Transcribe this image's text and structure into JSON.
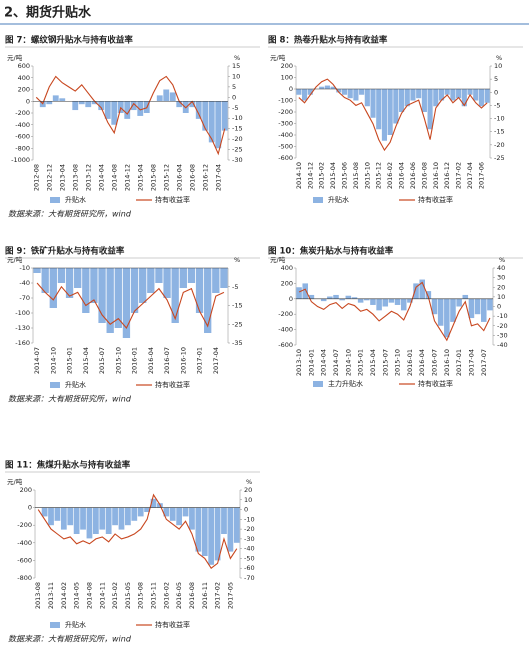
{
  "header": "2、期货升贴水",
  "chart_data": [
    {
      "type": "combo",
      "title": "图 7：螺纹钢升贴水与持有收益率",
      "y_unit": "元/吨",
      "y2_unit": "%",
      "source": "数据来源：大有期货研究所，wind",
      "categories": [
        "2012-08",
        null,
        "2012-12",
        null,
        "2013-04",
        null,
        "2013-08",
        null,
        "2013-12",
        null,
        "2014-04",
        null,
        "2014-08",
        null,
        "2014-12",
        null,
        "2015-04",
        null,
        "2015-08",
        null,
        "2015-12",
        null,
        "2016-04",
        null,
        "2016-08",
        null,
        "2016-12",
        null,
        "2017-04",
        null
      ],
      "ylim": [
        -1000,
        600
      ],
      "yticks": [
        600,
        400,
        200,
        0,
        -200,
        -400,
        -600,
        -800,
        -1000
      ],
      "y2lim": [
        -30,
        15
      ],
      "y2ticks": [
        15,
        10,
        5,
        0,
        -5,
        -10,
        -15,
        -20,
        -25,
        -30
      ],
      "series": [
        {
          "name": "升贴水",
          "type": "bar",
          "color": "#8db3e2",
          "values": [
            0,
            -100,
            -50,
            100,
            50,
            0,
            -150,
            -50,
            -100,
            -50,
            -150,
            -300,
            -400,
            -200,
            -300,
            -150,
            -250,
            -200,
            0,
            100,
            200,
            150,
            -100,
            -200,
            -100,
            -300,
            -500,
            -700,
            -800,
            -500
          ]
        },
        {
          "name": "持有收益率",
          "type": "line",
          "axis": "y2",
          "color": "#c8471f",
          "values": [
            0,
            -3,
            5,
            10,
            7,
            5,
            3,
            6,
            2,
            -2,
            -5,
            -12,
            -17,
            -5,
            -8,
            -3,
            -6,
            -5,
            2,
            8,
            10,
            6,
            -2,
            -5,
            -2,
            -8,
            -15,
            -20,
            -27,
            -15
          ]
        }
      ]
    },
    {
      "type": "combo",
      "title": "图 8：热卷升贴水与持有收益率",
      "y_unit": "元/吨",
      "y2_unit": "%",
      "categories": [
        "2014-10",
        null,
        "2014-12",
        null,
        "2015-02",
        null,
        "2015-04",
        null,
        "2015-06",
        null,
        "2015-08",
        null,
        "2015-10",
        null,
        "2015-12",
        null,
        "2016-02",
        null,
        "2016-04",
        null,
        "2016-06",
        null,
        "2016-08",
        null,
        "2016-10",
        null,
        "2016-12",
        null,
        "2017-02",
        null,
        "2017-04",
        null,
        "2017-06",
        null
      ],
      "ylim": [
        -600,
        200
      ],
      "yticks": [
        200,
        100,
        0,
        -100,
        -200,
        -300,
        -400,
        -500,
        -600
      ],
      "y2lim": [
        -25,
        10
      ],
      "y2ticks": [
        10,
        5,
        0,
        -5,
        -10,
        -15,
        -20,
        -25
      ],
      "series": [
        {
          "name": "升贴水",
          "type": "bar",
          "color": "#8db3e2",
          "values": [
            -50,
            -100,
            -50,
            0,
            20,
            30,
            20,
            -30,
            -50,
            -80,
            -100,
            -50,
            -150,
            -250,
            -350,
            -450,
            -400,
            -300,
            -200,
            -150,
            -100,
            -80,
            -200,
            -350,
            -150,
            -100,
            -50,
            -100,
            -80,
            -150,
            -50,
            -100,
            -150,
            -120
          ]
        },
        {
          "name": "持有收益率",
          "type": "line",
          "axis": "y2",
          "color": "#c8471f",
          "values": [
            -2,
            -4,
            -1,
            2,
            4,
            5,
            3,
            0,
            -2,
            -3,
            -5,
            -4,
            -8,
            -12,
            -18,
            -22,
            -19,
            -13,
            -8,
            -5,
            -4,
            -3,
            -10,
            -18,
            -6,
            -3,
            -1,
            -4,
            -2,
            -5,
            -1,
            -4,
            -6,
            -4
          ]
        }
      ]
    },
    {
      "type": "combo",
      "title": "图 9：铁矿升贴水与持有收益率",
      "y_unit": "元/吨",
      "y2_unit": "%",
      "source": "数据来源：大有期货研究所，wind",
      "categories": [
        "2014-07",
        null,
        "2014-10",
        null,
        "2015-01",
        null,
        "2015-04",
        null,
        "2015-07",
        null,
        "2015-10",
        null,
        "2016-01",
        null,
        "2016-04",
        null,
        "2016-07",
        null,
        "2016-10",
        null,
        "2017-01",
        null,
        "2017-04",
        null
      ],
      "ylim": [
        -160,
        -10
      ],
      "yticks": [
        -10,
        -40,
        -70,
        -100,
        -130,
        -160
      ],
      "y2lim": [
        -35,
        5
      ],
      "y2ticks": [
        -5,
        -15,
        -25,
        -35
      ],
      "series": [
        {
          "name": "升贴水",
          "type": "bar",
          "color": "#8db3e2",
          "values": [
            -20,
            -60,
            -90,
            -40,
            -70,
            -50,
            -100,
            -80,
            -120,
            -140,
            -130,
            -150,
            -100,
            -80,
            -60,
            -40,
            -70,
            -120,
            -50,
            -40,
            -100,
            -140,
            -60,
            -50
          ]
        },
        {
          "name": "持有收益率",
          "type": "line",
          "axis": "y2",
          "color": "#c8471f",
          "values": [
            -3,
            -8,
            -12,
            -5,
            -10,
            -8,
            -15,
            -12,
            -20,
            -25,
            -22,
            -27,
            -18,
            -14,
            -10,
            -6,
            -12,
            -22,
            -8,
            -6,
            -18,
            -26,
            -10,
            -8
          ]
        }
      ]
    },
    {
      "type": "combo",
      "title": "图 10：焦炭升贴水与持有收益率",
      "y_unit": "元/吨",
      "y2_unit": "%",
      "categories": [
        "2013-10",
        null,
        "2014-01",
        null,
        "2014-04",
        null,
        "2014-07",
        null,
        "2014-10",
        null,
        "2015-01",
        null,
        "2015-04",
        null,
        "2015-07",
        null,
        "2015-10",
        null,
        "2016-01",
        null,
        "2016-04",
        null,
        "2016-07",
        null,
        "2016-10",
        null,
        "2017-01",
        null,
        "2017-04",
        null,
        "2017-07",
        null
      ],
      "ylim": [
        -600,
        400
      ],
      "yticks": [
        400,
        200,
        0,
        -200,
        -400,
        -600
      ],
      "y2lim": [
        -40,
        40
      ],
      "y2ticks": [
        40,
        30,
        20,
        10,
        0,
        -10,
        -20,
        -30,
        -40
      ],
      "series": [
        {
          "name": "主力升贴水",
          "type": "bar",
          "color": "#8db3e2",
          "values": [
            150,
            200,
            50,
            0,
            -30,
            30,
            50,
            -20,
            40,
            20,
            -50,
            -20,
            -80,
            -150,
            -100,
            -50,
            -80,
            -150,
            -50,
            200,
            250,
            100,
            -200,
            -350,
            -500,
            -300,
            -100,
            50,
            -250,
            -200,
            -300,
            -150
          ]
        },
        {
          "name": "持有收益率",
          "type": "line",
          "axis": "y2",
          "color": "#c8471f",
          "values": [
            15,
            18,
            5,
            0,
            -3,
            2,
            4,
            -2,
            3,
            1,
            -5,
            -3,
            -8,
            -15,
            -10,
            -5,
            -8,
            -14,
            0,
            20,
            25,
            10,
            -15,
            -25,
            -35,
            -20,
            -5,
            5,
            -20,
            -18,
            -25,
            -12
          ]
        }
      ]
    },
    {
      "type": "combo",
      "title": "图 11：焦煤升贴水与持有收益率",
      "y_unit": "元/吨",
      "y2_unit": "%",
      "source": "数据来源：大有期货研究所，wind",
      "categories": [
        "2013-08",
        null,
        "2013-11",
        null,
        "2014-02",
        null,
        "2014-05",
        null,
        "2014-08",
        null,
        "2014-11",
        null,
        "2015-02",
        null,
        "2015-05",
        null,
        "2015-08",
        null,
        "2015-11",
        null,
        "2016-02",
        null,
        "2016-05",
        null,
        "2016-08",
        null,
        "2016-11",
        null,
        "2017-02",
        null,
        "2017-05",
        null
      ],
      "ylim": [
        -800,
        200
      ],
      "yticks": [
        200,
        0,
        -200,
        -400,
        -600,
        -800
      ],
      "y2lim": [
        -70,
        20
      ],
      "y2ticks": [
        20,
        10,
        0,
        -10,
        -20,
        -30,
        -40,
        -50,
        -60,
        -70
      ],
      "series": [
        {
          "name": "升贴水",
          "type": "bar",
          "color": "#8db3e2",
          "values": [
            0,
            -100,
            -200,
            -150,
            -250,
            -200,
            -300,
            -250,
            -350,
            -300,
            -250,
            -300,
            -200,
            -250,
            -200,
            -150,
            -100,
            -50,
            100,
            50,
            -100,
            -150,
            -200,
            -100,
            -250,
            -500,
            -550,
            -650,
            -600,
            -300,
            -500,
            -400
          ]
        },
        {
          "name": "持有收益率",
          "type": "line",
          "axis": "y2",
          "color": "#c8471f",
          "values": [
            0,
            -10,
            -20,
            -25,
            -30,
            -28,
            -35,
            -32,
            -35,
            -30,
            -28,
            -33,
            -25,
            -30,
            -28,
            -25,
            -20,
            -10,
            15,
            5,
            -10,
            -15,
            -20,
            -12,
            -25,
            -45,
            -50,
            -60,
            -55,
            -30,
            -50,
            -40
          ]
        }
      ]
    }
  ]
}
